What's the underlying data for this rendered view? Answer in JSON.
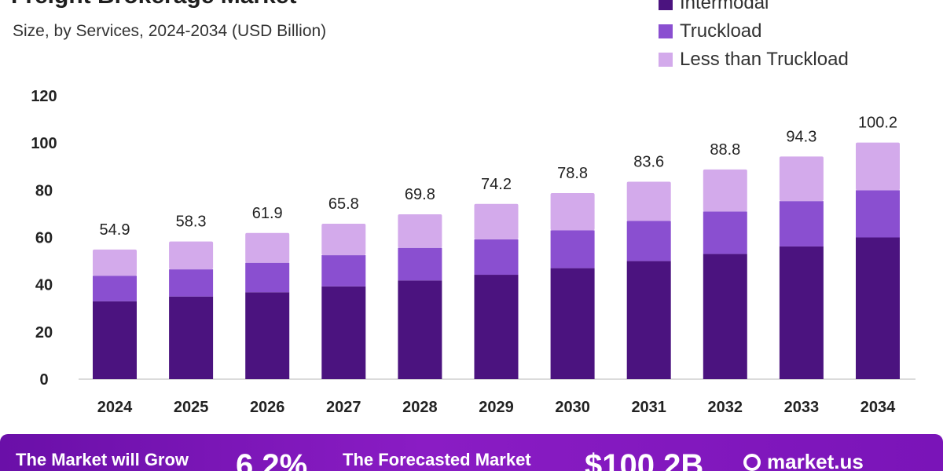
{
  "header": {
    "title": "Freight Brokerage Market",
    "subtitle": "Size, by Services, 2024-2034 (USD Billion)"
  },
  "legend": {
    "items": [
      {
        "label": "Intermodal",
        "color": "#4b137f"
      },
      {
        "label": "Truckload",
        "color": "#8a4fd0"
      },
      {
        "label": "Less than Truckload",
        "color": "#d3aaeb"
      }
    ]
  },
  "chart_data": {
    "type": "bar",
    "stacked": true,
    "title": "Freight Brokerage Market",
    "subtitle": "Size, by Services, 2024-2034 (USD Billion)",
    "xlabel": "",
    "ylabel": "",
    "ylim": [
      0,
      120
    ],
    "yticks": [
      0,
      20,
      40,
      60,
      80,
      100,
      120
    ],
    "grid": false,
    "legend_position": "top-right",
    "categories": [
      "2024",
      "2025",
      "2026",
      "2027",
      "2028",
      "2029",
      "2030",
      "2031",
      "2032",
      "2033",
      "2034"
    ],
    "totals": [
      "54.9",
      "58.3",
      "61.9",
      "65.8",
      "69.8",
      "74.2",
      "78.8",
      "83.6",
      "88.8",
      "94.3",
      "100.2"
    ],
    "series": [
      {
        "name": "Intermodal",
        "color": "#4b137f",
        "values": [
          33.0,
          35.0,
          36.8,
          39.3,
          41.8,
          44.2,
          47.0,
          50.0,
          53.0,
          56.2,
          60.0
        ]
      },
      {
        "name": "Truckload",
        "color": "#8a4fd0",
        "values": [
          10.8,
          11.5,
          12.5,
          13.2,
          13.8,
          15.0,
          16.0,
          17.0,
          18.0,
          19.2,
          20.0
        ]
      },
      {
        "name": "Less than Truckload",
        "color": "#d3aaeb",
        "values": [
          11.1,
          11.8,
          12.6,
          13.3,
          14.2,
          15.0,
          15.8,
          16.6,
          17.8,
          18.9,
          20.2
        ]
      }
    ]
  },
  "banner": {
    "grow_text": "The Market will Grow",
    "cagr": "6.2%",
    "forecast_text": "The Forecasted Market",
    "forecast_value": "$100.2B",
    "brand": "market.us"
  }
}
